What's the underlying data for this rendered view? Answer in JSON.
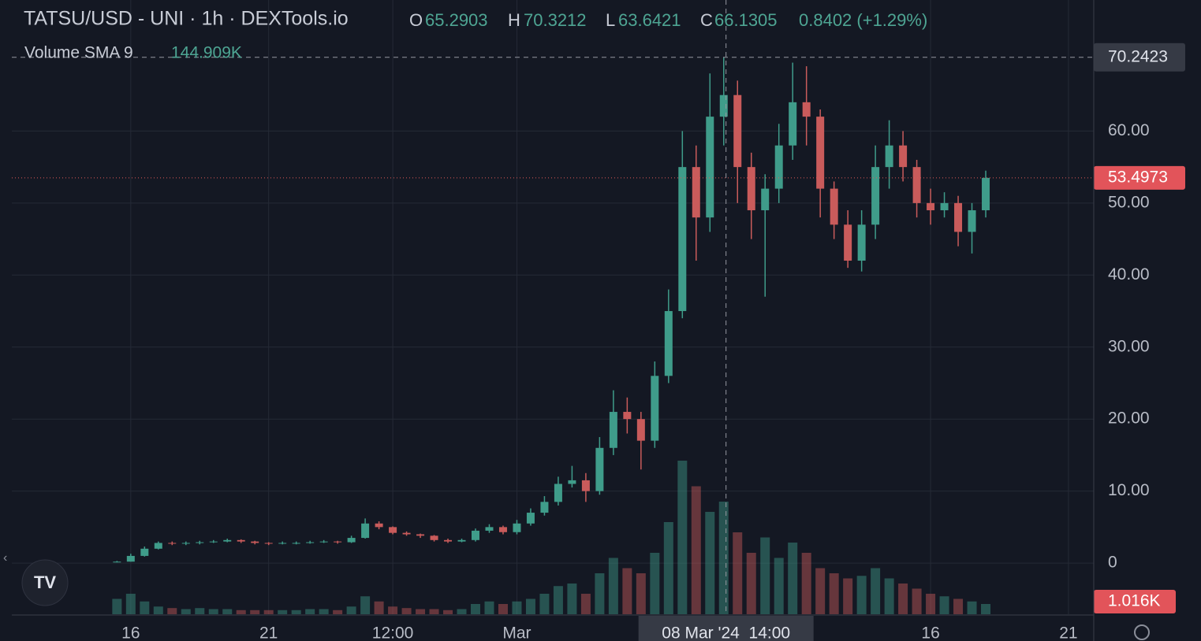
{
  "chart_data": {
    "type": "candlestick",
    "title": "TATSU/USD - UNI · 1h · DEXTools.io",
    "legend": {
      "o_label": "O",
      "o": "65.2903",
      "h_label": "H",
      "h": "70.3212",
      "l_label": "L",
      "l": "63.6421",
      "c_label": "C",
      "c": "66.1305",
      "change": "0.8402 (+1.29%)"
    },
    "volume_label": "Volume SMA 9",
    "volume_sma": "144.909K",
    "x": [
      "2024-02-15T12:00",
      "2024-02-16T00:00",
      "2024-02-16T12:00",
      "2024-02-17T00:00",
      "2024-02-17T12:00",
      "2024-02-18T00:00",
      "2024-02-18T12:00",
      "2024-02-19T00:00",
      "2024-02-19T12:00",
      "2024-02-20T00:00",
      "2024-02-20T12:00",
      "2024-02-21T00:00",
      "2024-02-21T12:00",
      "2024-02-22T00:00",
      "2024-02-22T12:00",
      "2024-02-23T00:00",
      "2024-02-23T12:00",
      "2024-02-24T00:00",
      "2024-02-24T12:00",
      "2024-02-25T00:00",
      "2024-02-25T12:00",
      "2024-02-26T00:00",
      "2024-02-26T12:00",
      "2024-02-27T00:00",
      "2024-02-27T12:00",
      "2024-02-28T00:00",
      "2024-02-28T12:00",
      "2024-02-29T00:00",
      "2024-02-29T12:00",
      "2024-03-01T00:00",
      "2024-03-01T12:00",
      "2024-03-02T00:00",
      "2024-03-02T12:00",
      "2024-03-03T00:00",
      "2024-03-03T12:00",
      "2024-03-04T00:00",
      "2024-03-04T12:00",
      "2024-03-05T00:00",
      "2024-03-05T12:00",
      "2024-03-06T00:00",
      "2024-03-06T12:00",
      "2024-03-07T00:00",
      "2024-03-07T12:00",
      "2024-03-08T00:00",
      "2024-03-08T12:00",
      "2024-03-09T00:00",
      "2024-03-09T12:00",
      "2024-03-10T00:00",
      "2024-03-10T12:00",
      "2024-03-11T00:00",
      "2024-03-11T12:00",
      "2024-03-12T00:00",
      "2024-03-12T12:00",
      "2024-03-13T00:00",
      "2024-03-13T12:00",
      "2024-03-14T00:00",
      "2024-03-14T12:00",
      "2024-03-15T00:00",
      "2024-03-15T12:00",
      "2024-03-16T00:00",
      "2024-03-16T12:00",
      "2024-03-17T00:00",
      "2024-03-17T12:00",
      "2024-03-18T00:00"
    ],
    "open": [
      0.1,
      0.2,
      1.0,
      2.0,
      2.8,
      2.7,
      2.8,
      2.9,
      3.0,
      3.2,
      3.0,
      2.8,
      2.7,
      2.8,
      2.8,
      2.9,
      3.0,
      2.9,
      3.5,
      5.5,
      5.0,
      4.2,
      4.0,
      3.8,
      3.2,
      3.0,
      3.2,
      4.5,
      5.0,
      4.3,
      5.5,
      7.0,
      8.5,
      11,
      11.5,
      10,
      16,
      21,
      20,
      17,
      26,
      35,
      55,
      48,
      62,
      65,
      55,
      49,
      52,
      58,
      64,
      62,
      52,
      47,
      42,
      47,
      55,
      58,
      55,
      50,
      49,
      50,
      46,
      49
    ],
    "high": [
      0.3,
      1.3,
      2.3,
      3.0,
      3.0,
      3.0,
      3.1,
      3.2,
      3.4,
      3.3,
      3.1,
      2.9,
      3.0,
      3.0,
      3.1,
      3.2,
      3.1,
      3.8,
      6.2,
      5.8,
      5.1,
      4.4,
      4.1,
      3.9,
      3.4,
      3.4,
      4.8,
      5.4,
      5.2,
      6.0,
      7.6,
      9.3,
      12,
      13.5,
      12.5,
      17.5,
      24,
      23,
      21,
      28,
      38,
      60,
      58,
      68,
      70.24,
      67,
      57,
      54,
      61,
      69.5,
      69,
      63,
      53,
      49,
      49,
      58,
      61.5,
      60,
      56,
      52,
      51.5,
      51,
      50,
      54.5
    ],
    "low": [
      0.1,
      0.2,
      0.9,
      1.9,
      2.5,
      2.5,
      2.6,
      2.8,
      2.9,
      2.8,
      2.6,
      2.5,
      2.6,
      2.6,
      2.7,
      2.8,
      2.7,
      2.8,
      3.4,
      4.7,
      4.0,
      3.8,
      3.5,
      3.0,
      2.8,
      2.9,
      3.0,
      4.2,
      4.0,
      4.0,
      5.2,
      6.6,
      8.0,
      10.5,
      8.5,
      9.5,
      15,
      18,
      13,
      16,
      25,
      34,
      42,
      46,
      58,
      50,
      45,
      37,
      50,
      56,
      58,
      48,
      45,
      41,
      40.5,
      45,
      52,
      53,
      48,
      47,
      48,
      44,
      43,
      48
    ],
    "close": [
      0.2,
      1.0,
      2.0,
      2.8,
      2.7,
      2.8,
      2.9,
      3.0,
      3.2,
      3.0,
      2.8,
      2.7,
      2.8,
      2.8,
      2.9,
      3.0,
      2.9,
      3.5,
      5.5,
      5.0,
      4.2,
      4.0,
      3.8,
      3.2,
      3.0,
      3.2,
      4.5,
      5.0,
      4.3,
      5.5,
      7.0,
      8.5,
      11,
      11.5,
      10,
      16,
      21,
      20,
      17,
      26,
      35,
      55,
      48,
      62,
      65,
      55,
      49,
      52,
      58,
      64,
      62,
      52,
      47,
      42,
      47,
      55,
      58,
      55,
      50,
      49,
      50,
      46,
      49,
      53.5
    ],
    "volume": [
      30,
      40,
      25,
      15,
      12,
      10,
      12,
      10,
      10,
      8,
      8,
      8,
      8,
      8,
      10,
      10,
      8,
      15,
      35,
      25,
      15,
      12,
      10,
      10,
      8,
      10,
      20,
      25,
      20,
      25,
      30,
      40,
      55,
      60,
      40,
      80,
      110,
      90,
      80,
      120,
      180,
      300,
      250,
      200,
      220,
      160,
      120,
      150,
      110,
      140,
      120,
      90,
      80,
      70,
      75,
      90,
      70,
      60,
      50,
      40,
      35,
      30,
      25,
      20
    ],
    "volume_ylim": [
      0,
      400
    ],
    "up_color": "#3f9c8a",
    "down_color": "#c95b5b",
    "ylim": [
      -7.1,
      78.2
    ],
    "yticks": [
      0,
      {
        "value": 10,
        "label": "10.00"
      },
      {
        "value": 20,
        "label": "20.00"
      },
      {
        "value": 30,
        "label": "30.00"
      },
      {
        "value": 40,
        "label": "40.00"
      },
      {
        "value": 50,
        "label": "50.00"
      },
      {
        "value": 60,
        "label": "60.00"
      }
    ],
    "xlim": [
      "2024-02-11T16:30",
      "2024-03-21T22:00"
    ],
    "xticks": [
      {
        "value": "2024-02-16T00:00",
        "label": "16"
      },
      {
        "value": "2024-02-21T00:00",
        "label": "21"
      },
      {
        "value": "2024-02-25T12:00",
        "label": "12:00"
      },
      {
        "value": "2024-03-01T00:00",
        "label": "Mar"
      },
      {
        "value": "2024-03-16T00:00",
        "label": "16"
      },
      {
        "value": "2024-03-21T00:00",
        "label": "21"
      }
    ],
    "grid": true,
    "crosshair": {
      "x": "2024-03-08T14:00",
      "x_label": "08 Mar '24  14:00",
      "y": {
        "value": 70.2423,
        "label": "70.2423"
      }
    },
    "last_price": {
      "value": 53.4973,
      "label": "53.4973"
    },
    "last_volume": "1.016K"
  }
}
